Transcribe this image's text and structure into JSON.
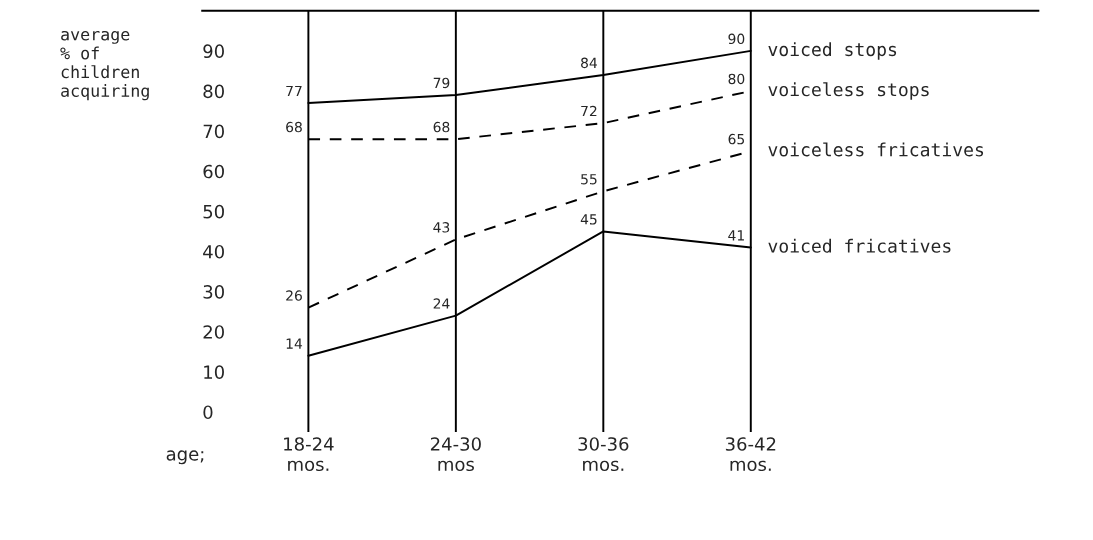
{
  "chart_data": {
    "type": "line",
    "ylabel": "average\n% of\nchildren\nacquiring",
    "xlabel": "age;",
    "categories": [
      "18-24\nmos.",
      "24-30\nmos",
      "30-36\nmos.",
      "36-42\nmos."
    ],
    "series": [
      {
        "name": "voiced stops",
        "color": "#000000",
        "line_style": "solid",
        "values": [
          77,
          79,
          84,
          90
        ]
      },
      {
        "name": "voiceless stops",
        "color": "#000000",
        "line_style": "dashed",
        "values": [
          68,
          68,
          72,
          80
        ]
      },
      {
        "name": "voiceless fricatives",
        "color": "#000000",
        "line_style": "dashed",
        "values": [
          26,
          43,
          55,
          65
        ]
      },
      {
        "name": "voiced fricatives",
        "color": "#000000",
        "line_style": "solid",
        "values": [
          14,
          24,
          45,
          41
        ]
      }
    ],
    "ylim": [
      -5,
      100
    ],
    "yticks": [
      0,
      10,
      20,
      30,
      40,
      50,
      60,
      70,
      80,
      90
    ],
    "grid": "x",
    "data_labels": true,
    "marker": "none",
    "legend": false
  }
}
